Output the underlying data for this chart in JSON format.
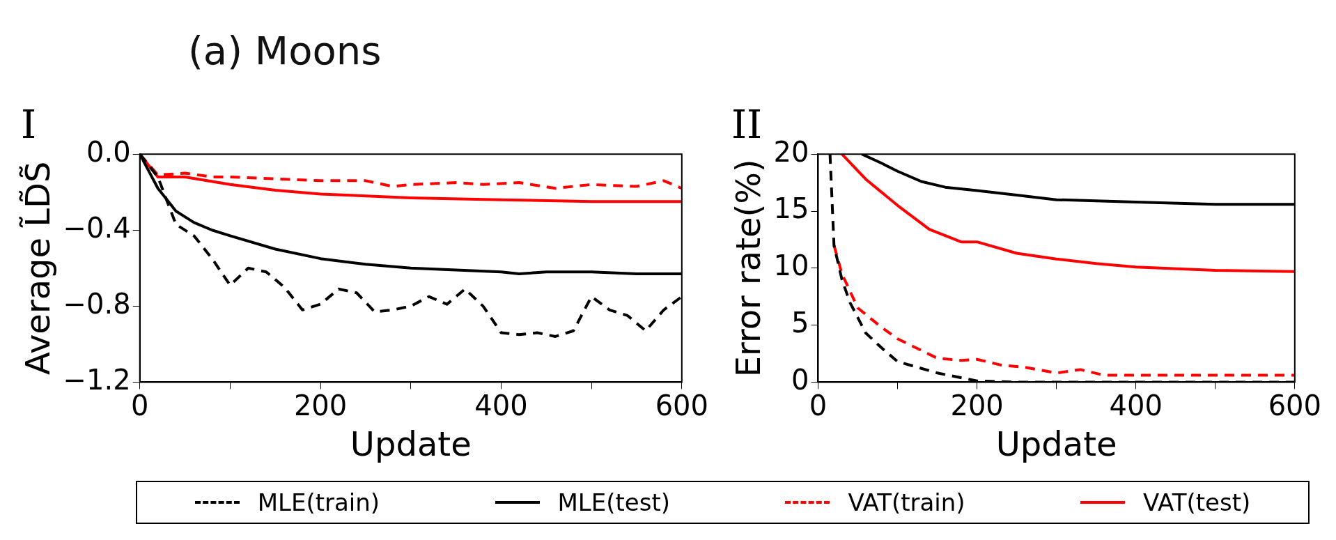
{
  "chart_data": [
    {
      "type": "line",
      "title": "I",
      "annotations": [
        "(a) Moons"
      ],
      "xlabel": "Update",
      "ylabel": "Average L̃D̃S̃",
      "xlim": [
        0,
        600
      ],
      "xticks": [
        0,
        {
          "value": 100,
          "label": null
        },
        200,
        {
          "value": 300,
          "label": null
        },
        400,
        {
          "value": 500,
          "label": null
        },
        600
      ],
      "ylim": [
        -1.2,
        0
      ],
      "yticks": [
        {
          "value": -1.2,
          "label": "−1.2"
        },
        {
          "value": -0.8,
          "label": "−0.8"
        },
        {
          "value": -0.4,
          "label": "−0.4"
        },
        {
          "value": 0,
          "label": "0.0"
        }
      ],
      "grid": false,
      "legend": "bottom",
      "marker": "none",
      "series": [
        {
          "name": "MLE(train)",
          "color": "#000000",
          "line_style": "dashed",
          "x": [
            0,
            20,
            40,
            60,
            80,
            100,
            120,
            140,
            160,
            180,
            200,
            220,
            240,
            260,
            280,
            300,
            320,
            340,
            360,
            380,
            400,
            420,
            440,
            460,
            480,
            500,
            520,
            540,
            560,
            580,
            600
          ],
          "values": [
            0,
            -0.12,
            -0.37,
            -0.43,
            -0.55,
            -0.69,
            -0.6,
            -0.62,
            -0.7,
            -0.82,
            -0.79,
            -0.71,
            -0.73,
            -0.83,
            -0.82,
            -0.8,
            -0.75,
            -0.79,
            -0.71,
            -0.8,
            -0.94,
            -0.95,
            -0.94,
            -0.96,
            -0.93,
            -0.75,
            -0.82,
            -0.85,
            -0.93,
            -0.82,
            -0.75
          ]
        },
        {
          "name": "MLE(test)",
          "color": "#000000",
          "line_style": "solid",
          "x": [
            0,
            20,
            40,
            60,
            80,
            100,
            150,
            200,
            250,
            300,
            350,
            400,
            420,
            450,
            500,
            550,
            600
          ],
          "values": [
            0,
            -0.18,
            -0.3,
            -0.36,
            -0.4,
            -0.43,
            -0.5,
            -0.55,
            -0.58,
            -0.6,
            -0.61,
            -0.62,
            -0.63,
            -0.62,
            -0.62,
            -0.63,
            -0.63
          ]
        },
        {
          "name": "VAT(train)",
          "color": "#ff0000",
          "line_style": "dashed",
          "x": [
            0,
            20,
            50,
            80,
            100,
            150,
            200,
            250,
            280,
            300,
            350,
            380,
            420,
            460,
            500,
            550,
            580,
            600
          ],
          "values": [
            0,
            -0.11,
            -0.1,
            -0.12,
            -0.12,
            -0.13,
            -0.14,
            -0.14,
            -0.17,
            -0.16,
            -0.15,
            -0.16,
            -0.15,
            -0.18,
            -0.16,
            -0.17,
            -0.14,
            -0.18
          ]
        },
        {
          "name": "VAT(test)",
          "color": "#ff0000",
          "line_style": "solid",
          "x": [
            0,
            20,
            50,
            100,
            150,
            200,
            300,
            400,
            500,
            600
          ],
          "values": [
            0,
            -0.12,
            -0.12,
            -0.16,
            -0.19,
            -0.21,
            -0.23,
            -0.24,
            -0.25,
            -0.25
          ]
        }
      ]
    },
    {
      "type": "line",
      "title": "II",
      "xlabel": "Update",
      "ylabel": "Error rate(%)",
      "xlim": [
        0,
        600
      ],
      "xticks": [
        0,
        {
          "value": 100,
          "label": null
        },
        200,
        {
          "value": 300,
          "label": null
        },
        400,
        {
          "value": 500,
          "label": null
        },
        600
      ],
      "ylim": [
        0,
        20
      ],
      "yticks": [
        0,
        5,
        10,
        15,
        20
      ],
      "grid": false,
      "marker": "none",
      "series": [
        {
          "color": "#000000",
          "line_style": "dashed",
          "x": [
            15,
            20,
            30,
            40,
            60,
            80,
            100,
            150,
            200,
            250,
            300,
            400,
            600
          ],
          "values": [
            20,
            12,
            9,
            7,
            4.3,
            3,
            1.8,
            0.8,
            0.1,
            0,
            0,
            0,
            0
          ]
        },
        {
          "color": "#000000",
          "line_style": "solid",
          "x": [
            55,
            80,
            100,
            130,
            160,
            200,
            250,
            300,
            400,
            500,
            600
          ],
          "values": [
            20,
            19.2,
            18.5,
            17.6,
            17.1,
            16.8,
            16.4,
            16,
            15.8,
            15.6,
            15.6
          ]
        },
        {
          "color": "#ff0000",
          "line_style": "dashed",
          "x": [
            20,
            30,
            50,
            80,
            100,
            150,
            180,
            200,
            230,
            260,
            300,
            330,
            360,
            400,
            500,
            600
          ],
          "values": [
            12,
            9.5,
            6.5,
            4.8,
            3.8,
            2.1,
            1.9,
            2,
            1.5,
            1.3,
            0.8,
            1.1,
            0.6,
            0.6,
            0.6,
            0.6
          ]
        },
        {
          "color": "#ff0000",
          "line_style": "solid",
          "x": [
            30,
            60,
            100,
            140,
            180,
            200,
            250,
            300,
            350,
            400,
            500,
            600
          ],
          "values": [
            20,
            17.8,
            15.5,
            13.4,
            12.3,
            12.3,
            11.3,
            10.8,
            10.4,
            10.1,
            9.8,
            9.7
          ]
        }
      ]
    }
  ]
}
